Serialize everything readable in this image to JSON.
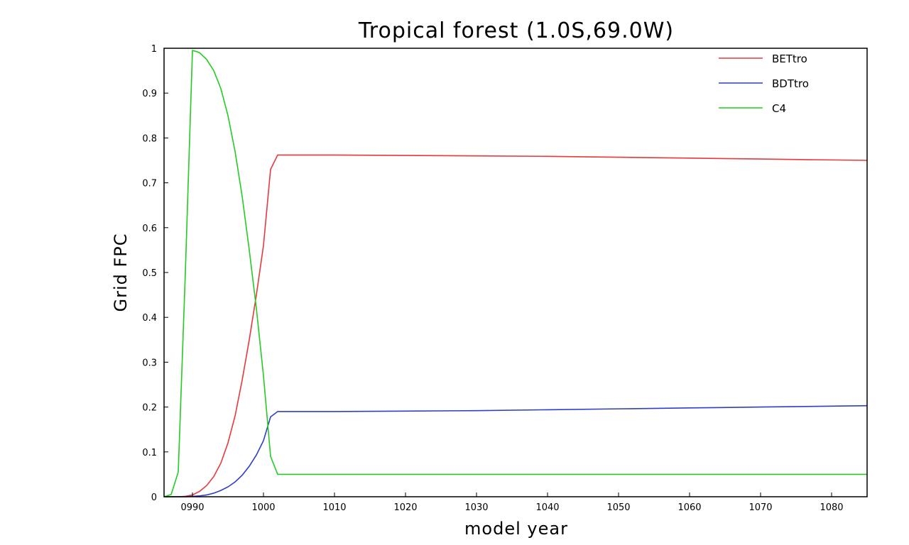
{
  "chart_data": {
    "type": "line",
    "title": "Tropical forest (1.0S,69.0W)",
    "xlabel": "model year",
    "ylabel": "Grid FPC",
    "xlim": [
      986,
      1085
    ],
    "ylim": [
      0,
      1
    ],
    "x_ticks": [
      990,
      1000,
      1010,
      1020,
      1030,
      1040,
      1050,
      1060,
      1070,
      1080
    ],
    "x_tick_labels": [
      "0990",
      "1000",
      "1010",
      "1020",
      "1030",
      "1040",
      "1050",
      "1060",
      "1070",
      "1080"
    ],
    "y_ticks": [
      0,
      0.1,
      0.2,
      0.3,
      0.4,
      0.5,
      0.6,
      0.7,
      0.8,
      0.9,
      1
    ],
    "y_tick_labels": [
      "0",
      "0.1",
      "0.2",
      "0.3",
      "0.4",
      "0.5",
      "0.6",
      "0.7",
      "0.8",
      "0.9",
      "1"
    ],
    "grid": false,
    "legend_position": "top-right",
    "series": [
      {
        "name": "BETtro",
        "color": "#e8383c",
        "x": [
          986,
          987,
          988,
          989,
          990,
          991,
          992,
          993,
          994,
          995,
          996,
          997,
          998,
          999,
          1000,
          1001,
          1002,
          1010,
          1020,
          1030,
          1040,
          1050,
          1060,
          1070,
          1085
        ],
        "y": [
          0,
          0,
          0,
          0.001,
          0.004,
          0.012,
          0.025,
          0.045,
          0.075,
          0.12,
          0.18,
          0.26,
          0.35,
          0.45,
          0.56,
          0.73,
          0.762,
          0.762,
          0.761,
          0.76,
          0.759,
          0.757,
          0.755,
          0.753,
          0.75
        ]
      },
      {
        "name": "BDTtro",
        "color": "#2d3fc8",
        "x": [
          986,
          988,
          989,
          990,
          991,
          992,
          993,
          994,
          995,
          996,
          997,
          998,
          999,
          1000,
          1001,
          1002,
          1010,
          1020,
          1030,
          1040,
          1050,
          1060,
          1070,
          1085
        ],
        "y": [
          0,
          0,
          0,
          0.001,
          0.002,
          0.004,
          0.008,
          0.014,
          0.022,
          0.033,
          0.048,
          0.068,
          0.093,
          0.125,
          0.178,
          0.19,
          0.19,
          0.191,
          0.192,
          0.194,
          0.196,
          0.198,
          0.2,
          0.203
        ]
      },
      {
        "name": "C4",
        "color": "#22cc22",
        "x": [
          986,
          987,
          988,
          989,
          990,
          990.5,
          991,
          992,
          993,
          994,
          995,
          996,
          997,
          998,
          999,
          1000,
          1001,
          1002,
          1010,
          1020,
          1030,
          1040,
          1050,
          1060,
          1070,
          1085
        ],
        "y": [
          0,
          0.005,
          0.055,
          0.5,
          0.995,
          0.993,
          0.99,
          0.975,
          0.95,
          0.91,
          0.85,
          0.77,
          0.67,
          0.55,
          0.42,
          0.27,
          0.09,
          0.05,
          0.05,
          0.05,
          0.05,
          0.05,
          0.05,
          0.05,
          0.05,
          0.05
        ]
      }
    ]
  }
}
